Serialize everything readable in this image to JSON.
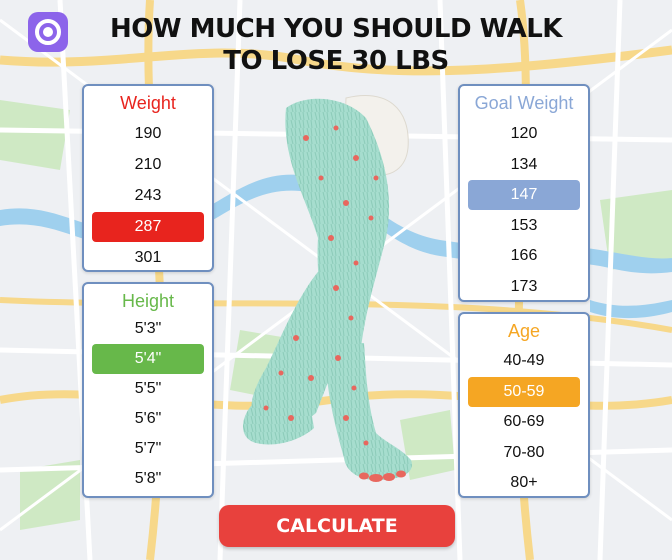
{
  "header": {
    "title_line1": "HOW MUCH YOU SHOULD WALK",
    "title_line2": "TO LOSE 30 LBS",
    "app_icon": "target-circle-icon"
  },
  "weight": {
    "title": "Weight",
    "color": "#e8241e",
    "options": [
      "190",
      "210",
      "243",
      "287",
      "301"
    ],
    "selected_index": 3
  },
  "height": {
    "title": "Height",
    "color": "#67b84a",
    "options": [
      "5'3\"",
      "5'4\"",
      "5'5\"",
      "5'6\"",
      "5'7\"",
      "5'8\""
    ],
    "selected_index": 1
  },
  "goal_weight": {
    "title": "Goal Weight",
    "color": "#8aa7d6",
    "options": [
      "120",
      "134",
      "147",
      "153",
      "166",
      "173"
    ],
    "selected_index": 2
  },
  "age": {
    "title": "Age",
    "color": "#f5a623",
    "options": [
      "40-49",
      "50-59",
      "60-69",
      "70-80",
      "80+"
    ],
    "selected_index": 1
  },
  "cta": {
    "label": "CALCULATE",
    "color": "#e8413d"
  },
  "illustration": {
    "name": "furry-legs-illustration",
    "fur_color": "#9ed9c9",
    "spot_color": "#e8675e"
  }
}
